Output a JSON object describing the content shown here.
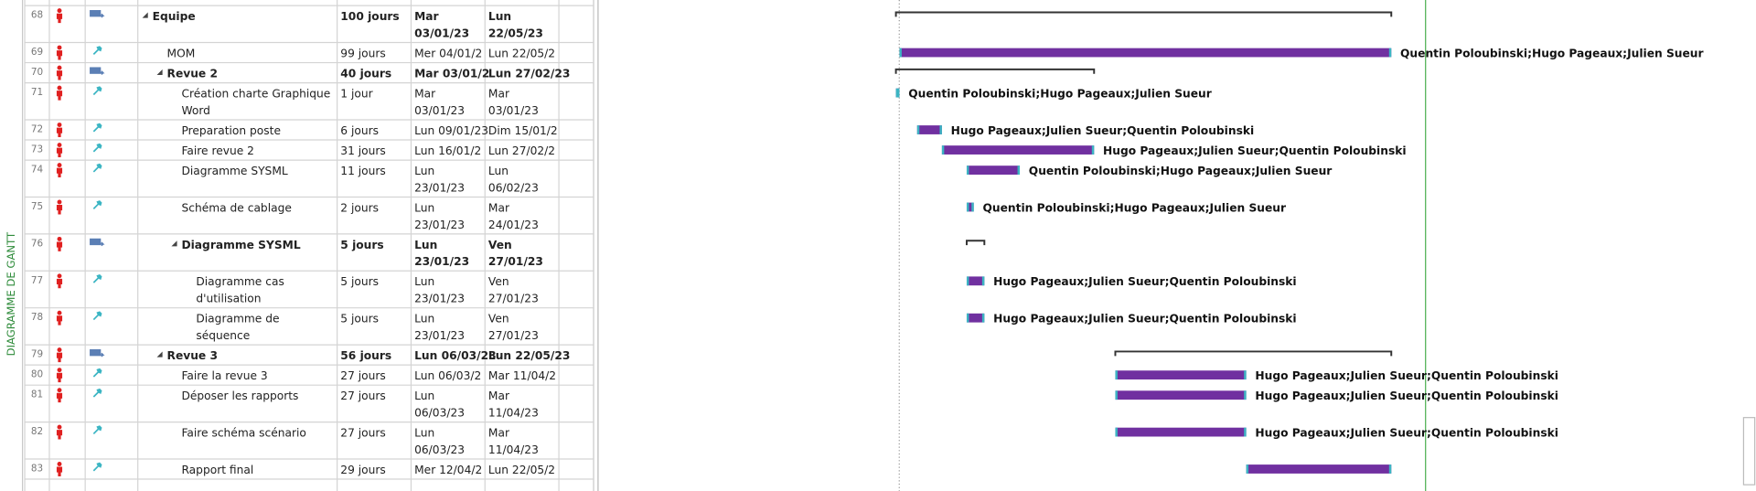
{
  "side_label": "DIAGRAMME DE GANTT",
  "rows": [
    {
      "id": "68",
      "level": 1,
      "summary": true,
      "name": "Equipe",
      "duration": "100 jours",
      "start": [
        "Mar",
        "03/01/23"
      ],
      "finish": [
        "Lun",
        "22/05/23"
      ]
    },
    {
      "id": "69",
      "level": 2,
      "summary": false,
      "name": "MOM",
      "duration": "99 jours",
      "start": "Mer 04/01/2",
      "finish": "Lun 22/05/2",
      "resources": "Quentin Poloubinski;Hugo Pageaux;Julien Sueur"
    },
    {
      "id": "70",
      "level": 2,
      "summary": true,
      "name": "Revue 2",
      "duration": "40 jours",
      "start": "Mar 03/01/2",
      "finish": "Lun 27/02/23"
    },
    {
      "id": "71",
      "level": 3,
      "summary": false,
      "name": [
        "Création charte Graphique",
        "Word"
      ],
      "duration": "1 jour",
      "start": [
        "Mar",
        "03/01/23"
      ],
      "finish": [
        "Mar",
        "03/01/23"
      ],
      "resources": "Quentin Poloubinski;Hugo Pageaux;Julien Sueur"
    },
    {
      "id": "72",
      "level": 3,
      "summary": false,
      "name": "Preparation poste",
      "duration": "6 jours",
      "start": "Lun 09/01/23",
      "finish": "Dim 15/01/2",
      "resources": "Hugo Pageaux;Julien Sueur;Quentin Poloubinski"
    },
    {
      "id": "73",
      "level": 3,
      "summary": false,
      "name": "Faire revue 2",
      "duration": "31 jours",
      "start": "Lun 16/01/2",
      "finish": "Lun 27/02/2",
      "resources": "Hugo Pageaux;Julien Sueur;Quentin Poloubinski"
    },
    {
      "id": "74",
      "level": 3,
      "summary": false,
      "name": "Diagramme SYSML",
      "duration": "11 jours",
      "start": [
        "Lun",
        "23/01/23"
      ],
      "finish": [
        "Lun",
        "06/02/23"
      ],
      "resources": "Quentin Poloubinski;Hugo Pageaux;Julien Sueur"
    },
    {
      "id": "75",
      "level": 3,
      "summary": false,
      "name": "Schéma de cablage",
      "duration": "2 jours",
      "start": [
        "Lun",
        "23/01/23"
      ],
      "finish": [
        "Mar",
        "24/01/23"
      ],
      "resources": "Quentin Poloubinski;Hugo Pageaux;Julien Sueur"
    },
    {
      "id": "76",
      "level": 3,
      "summary": true,
      "name": "Diagramme SYSML",
      "duration": "5 jours",
      "start": [
        "Lun",
        "23/01/23"
      ],
      "finish": [
        "Ven",
        "27/01/23"
      ]
    },
    {
      "id": "77",
      "level": 4,
      "summary": false,
      "name": [
        "Diagramme cas",
        "d'utilisation"
      ],
      "duration": "5 jours",
      "start": [
        "Lun",
        "23/01/23"
      ],
      "finish": [
        "Ven",
        "27/01/23"
      ],
      "resources": "Hugo Pageaux;Julien Sueur;Quentin Poloubinski"
    },
    {
      "id": "78",
      "level": 4,
      "summary": false,
      "name": [
        "Diagramme de",
        "séquence"
      ],
      "duration": "5 jours",
      "start": [
        "Lun",
        "23/01/23"
      ],
      "finish": [
        "Ven",
        "27/01/23"
      ],
      "resources": "Hugo Pageaux;Julien Sueur;Quentin Poloubinski"
    },
    {
      "id": "79",
      "level": 2,
      "summary": true,
      "name": "Revue 3",
      "duration": "56 jours",
      "start": "Lun 06/03/23",
      "finish": "Lun 22/05/23"
    },
    {
      "id": "80",
      "level": 3,
      "summary": false,
      "name": "Faire la revue 3",
      "duration": "27 jours",
      "start": "Lun 06/03/2",
      "finish": "Mar 11/04/2",
      "resources": "Hugo Pageaux;Julien Sueur;Quentin Poloubinski"
    },
    {
      "id": "81",
      "level": 3,
      "summary": false,
      "name": "Déposer les rapports",
      "duration": "27 jours",
      "start": [
        "Lun",
        "06/03/23"
      ],
      "finish": [
        "Mar",
        "11/04/23"
      ],
      "resources": "Hugo Pageaux;Julien Sueur;Quentin Poloubinski"
    },
    {
      "id": "82",
      "level": 3,
      "summary": false,
      "name": "Faire schéma scénario",
      "duration": "27 jours",
      "start": [
        "Lun",
        "06/03/23"
      ],
      "finish": [
        "Mar",
        "11/04/23"
      ],
      "resources": "Hugo Pageaux;Julien Sueur;Quentin Poloubinski"
    },
    {
      "id": "83",
      "level": 3,
      "summary": false,
      "name": "Rapport final",
      "duration": "29 jours",
      "start": "Mer 12/04/2",
      "finish": "Lun 22/05/2"
    }
  ]
}
